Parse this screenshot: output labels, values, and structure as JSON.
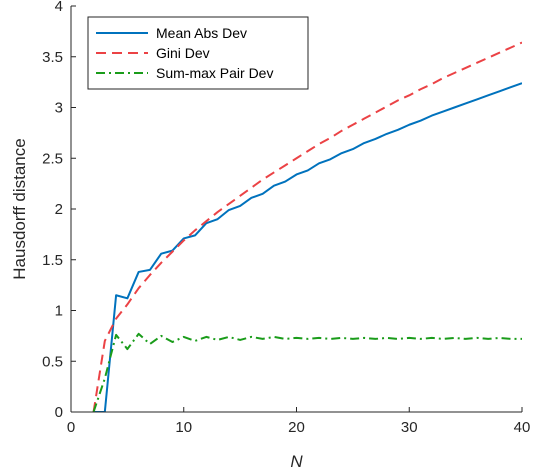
{
  "chart_data": {
    "type": "line",
    "title": "",
    "xlabel": "N",
    "ylabel": "Hausdorff distance",
    "xlim": [
      0,
      40
    ],
    "ylim": [
      0,
      4
    ],
    "xticks": [
      0,
      10,
      20,
      30,
      40
    ],
    "yticks": [
      0,
      0.5,
      1,
      1.5,
      2,
      2.5,
      3,
      3.5,
      4
    ],
    "xtick_labels": [
      "0",
      "10",
      "20",
      "30",
      "40"
    ],
    "ytick_labels": [
      "0",
      "0.5",
      "1",
      "1.5",
      "2",
      "2.5",
      "3",
      "3.5",
      "4"
    ],
    "grid": false,
    "legend_position": "top-left",
    "x": [
      2,
      3,
      4,
      5,
      6,
      7,
      8,
      9,
      10,
      11,
      12,
      13,
      14,
      15,
      16,
      17,
      18,
      19,
      20,
      21,
      22,
      23,
      24,
      25,
      26,
      27,
      28,
      29,
      30,
      31,
      32,
      33,
      34,
      35,
      36,
      37,
      38,
      39,
      40
    ],
    "series": [
      {
        "name": "Mean Abs Dev",
        "color": "#0072BD",
        "style": "solid",
        "values": [
          0,
          0,
          1.15,
          1.12,
          1.38,
          1.4,
          1.56,
          1.59,
          1.71,
          1.74,
          1.86,
          1.9,
          1.99,
          2.03,
          2.11,
          2.15,
          2.23,
          2.27,
          2.34,
          2.38,
          2.45,
          2.49,
          2.55,
          2.59,
          2.65,
          2.69,
          2.74,
          2.78,
          2.83,
          2.87,
          2.92,
          2.96,
          3.0,
          3.04,
          3.08,
          3.12,
          3.16,
          3.2,
          3.24
        ]
      },
      {
        "name": "Gini Dev",
        "color": "#EB4245",
        "style": "dashed",
        "values": [
          0,
          0.7,
          0.92,
          1.06,
          1.22,
          1.35,
          1.47,
          1.58,
          1.69,
          1.79,
          1.88,
          1.97,
          2.05,
          2.13,
          2.21,
          2.29,
          2.36,
          2.43,
          2.5,
          2.57,
          2.64,
          2.7,
          2.77,
          2.83,
          2.89,
          2.95,
          3.01,
          3.07,
          3.12,
          3.18,
          3.23,
          3.29,
          3.34,
          3.39,
          3.44,
          3.49,
          3.54,
          3.59,
          3.64
        ]
      },
      {
        "name": "Sum-max Pair Dev",
        "color": "#1A9C1A",
        "style": "dashdot",
        "values": [
          0,
          0.33,
          0.76,
          0.62,
          0.77,
          0.67,
          0.75,
          0.69,
          0.74,
          0.7,
          0.74,
          0.71,
          0.74,
          0.71,
          0.74,
          0.72,
          0.74,
          0.72,
          0.73,
          0.72,
          0.73,
          0.72,
          0.73,
          0.72,
          0.73,
          0.72,
          0.73,
          0.72,
          0.73,
          0.72,
          0.73,
          0.72,
          0.73,
          0.72,
          0.73,
          0.72,
          0.73,
          0.72,
          0.72
        ]
      }
    ]
  }
}
